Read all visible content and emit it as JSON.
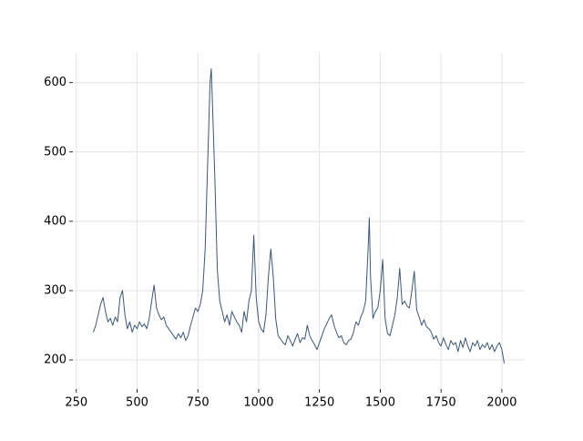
{
  "chart_data": {
    "type": "line",
    "x": [
      320,
      330,
      340,
      350,
      360,
      370,
      380,
      390,
      400,
      410,
      420,
      430,
      440,
      450,
      460,
      470,
      480,
      490,
      500,
      510,
      520,
      530,
      540,
      550,
      560,
      570,
      580,
      590,
      600,
      610,
      620,
      630,
      640,
      650,
      660,
      670,
      680,
      690,
      700,
      710,
      720,
      730,
      740,
      750,
      760,
      770,
      780,
      790,
      800,
      805,
      810,
      820,
      830,
      840,
      850,
      860,
      870,
      880,
      890,
      900,
      910,
      920,
      930,
      940,
      950,
      960,
      970,
      980,
      990,
      1000,
      1010,
      1020,
      1030,
      1040,
      1050,
      1060,
      1070,
      1080,
      1090,
      1100,
      1110,
      1120,
      1130,
      1140,
      1150,
      1160,
      1170,
      1180,
      1190,
      1200,
      1210,
      1220,
      1230,
      1240,
      1250,
      1260,
      1270,
      1280,
      1290,
      1300,
      1310,
      1320,
      1330,
      1340,
      1350,
      1360,
      1370,
      1380,
      1390,
      1400,
      1410,
      1420,
      1430,
      1440,
      1450,
      1455,
      1460,
      1470,
      1480,
      1490,
      1500,
      1510,
      1520,
      1530,
      1540,
      1550,
      1560,
      1570,
      1580,
      1590,
      1600,
      1610,
      1620,
      1630,
      1640,
      1650,
      1660,
      1670,
      1680,
      1690,
      1700,
      1710,
      1720,
      1730,
      1740,
      1750,
      1760,
      1770,
      1780,
      1790,
      1800,
      1810,
      1820,
      1830,
      1840,
      1850,
      1860,
      1870,
      1880,
      1890,
      1900,
      1910,
      1920,
      1930,
      1940,
      1950,
      1960,
      1970,
      1980,
      1990,
      2000,
      2010
    ],
    "series": [
      {
        "color": "#3b5778",
        "values": [
          240,
          250,
          265,
          280,
          290,
          270,
          255,
          260,
          250,
          262,
          255,
          290,
          300,
          265,
          245,
          255,
          240,
          250,
          245,
          255,
          248,
          252,
          245,
          260,
          285,
          308,
          275,
          265,
          258,
          262,
          250,
          245,
          240,
          235,
          230,
          238,
          232,
          240,
          228,
          235,
          250,
          262,
          275,
          270,
          280,
          300,
          360,
          480,
          600,
          620,
          570,
          460,
          330,
          285,
          270,
          255,
          265,
          250,
          270,
          262,
          255,
          250,
          240,
          270,
          255,
          285,
          300,
          380,
          290,
          255,
          245,
          240,
          265,
          320,
          360,
          320,
          260,
          235,
          230,
          225,
          222,
          235,
          228,
          220,
          230,
          238,
          225,
          232,
          230,
          250,
          235,
          228,
          222,
          215,
          225,
          235,
          245,
          252,
          260,
          265,
          250,
          240,
          232,
          235,
          225,
          222,
          228,
          230,
          240,
          255,
          250,
          262,
          270,
          285,
          360,
          405,
          320,
          260,
          270,
          275,
          300,
          345,
          260,
          238,
          235,
          250,
          265,
          290,
          332,
          280,
          285,
          278,
          275,
          300,
          328,
          272,
          262,
          250,
          258,
          248,
          245,
          240,
          230,
          235,
          225,
          220,
          232,
          222,
          215,
          228,
          222,
          225,
          212,
          228,
          218,
          232,
          220,
          212,
          225,
          220,
          228,
          215,
          222,
          218,
          225,
          215,
          222,
          212,
          220,
          225,
          215,
          195
        ]
      }
    ],
    "xlim": [
      236,
      2094
    ],
    "ylim": [
      158,
      643
    ],
    "xticks": [
      250,
      500,
      750,
      1000,
      1250,
      1500,
      1750,
      2000
    ],
    "yticks": [
      200,
      300,
      400,
      500,
      600
    ],
    "grid": true
  }
}
